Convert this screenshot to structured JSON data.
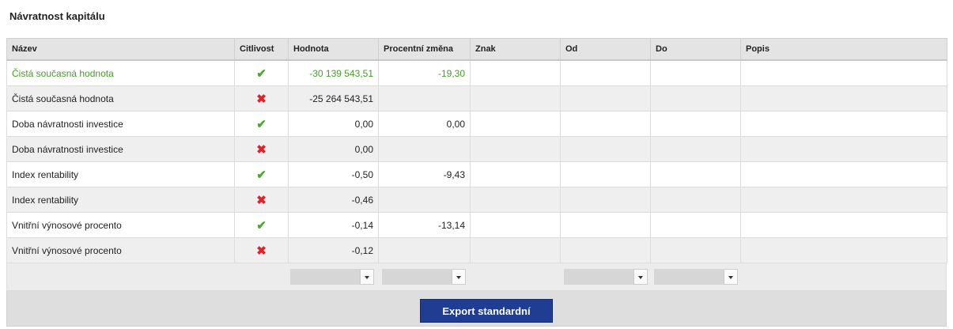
{
  "header": {
    "title": "Návratnost kapitálu"
  },
  "table": {
    "columns": [
      "Název",
      "Citlivost",
      "Hodnota",
      "Procentní změna",
      "Znak",
      "Od",
      "Do",
      "Popis"
    ],
    "rows": [
      {
        "name": "Čistá současná hodnota",
        "sensitive": true,
        "value": "-30 139 543,51",
        "change": "-19,30"
      },
      {
        "name": "Čistá současná hodnota",
        "sensitive": false,
        "value": "-25 264 543,51",
        "change": null
      },
      {
        "name": "Doba návratnosti investice",
        "sensitive": true,
        "value": "0,00",
        "change": "0,00"
      },
      {
        "name": "Doba návratnosti investice",
        "sensitive": false,
        "value": "0,00",
        "change": null
      },
      {
        "name": "Index rentability",
        "sensitive": true,
        "value": "-0,50",
        "change": "-9,43"
      },
      {
        "name": "Index rentability",
        "sensitive": false,
        "value": "-0,46",
        "change": null
      },
      {
        "name": "Vnitřní výnosové procento",
        "sensitive": true,
        "value": "-0,14",
        "change": "-13,14"
      },
      {
        "name": "Vnitřní výnosové procento",
        "sensitive": false,
        "value": "-0,12",
        "change": null
      }
    ]
  },
  "button": {
    "label": "Export standardní"
  }
}
